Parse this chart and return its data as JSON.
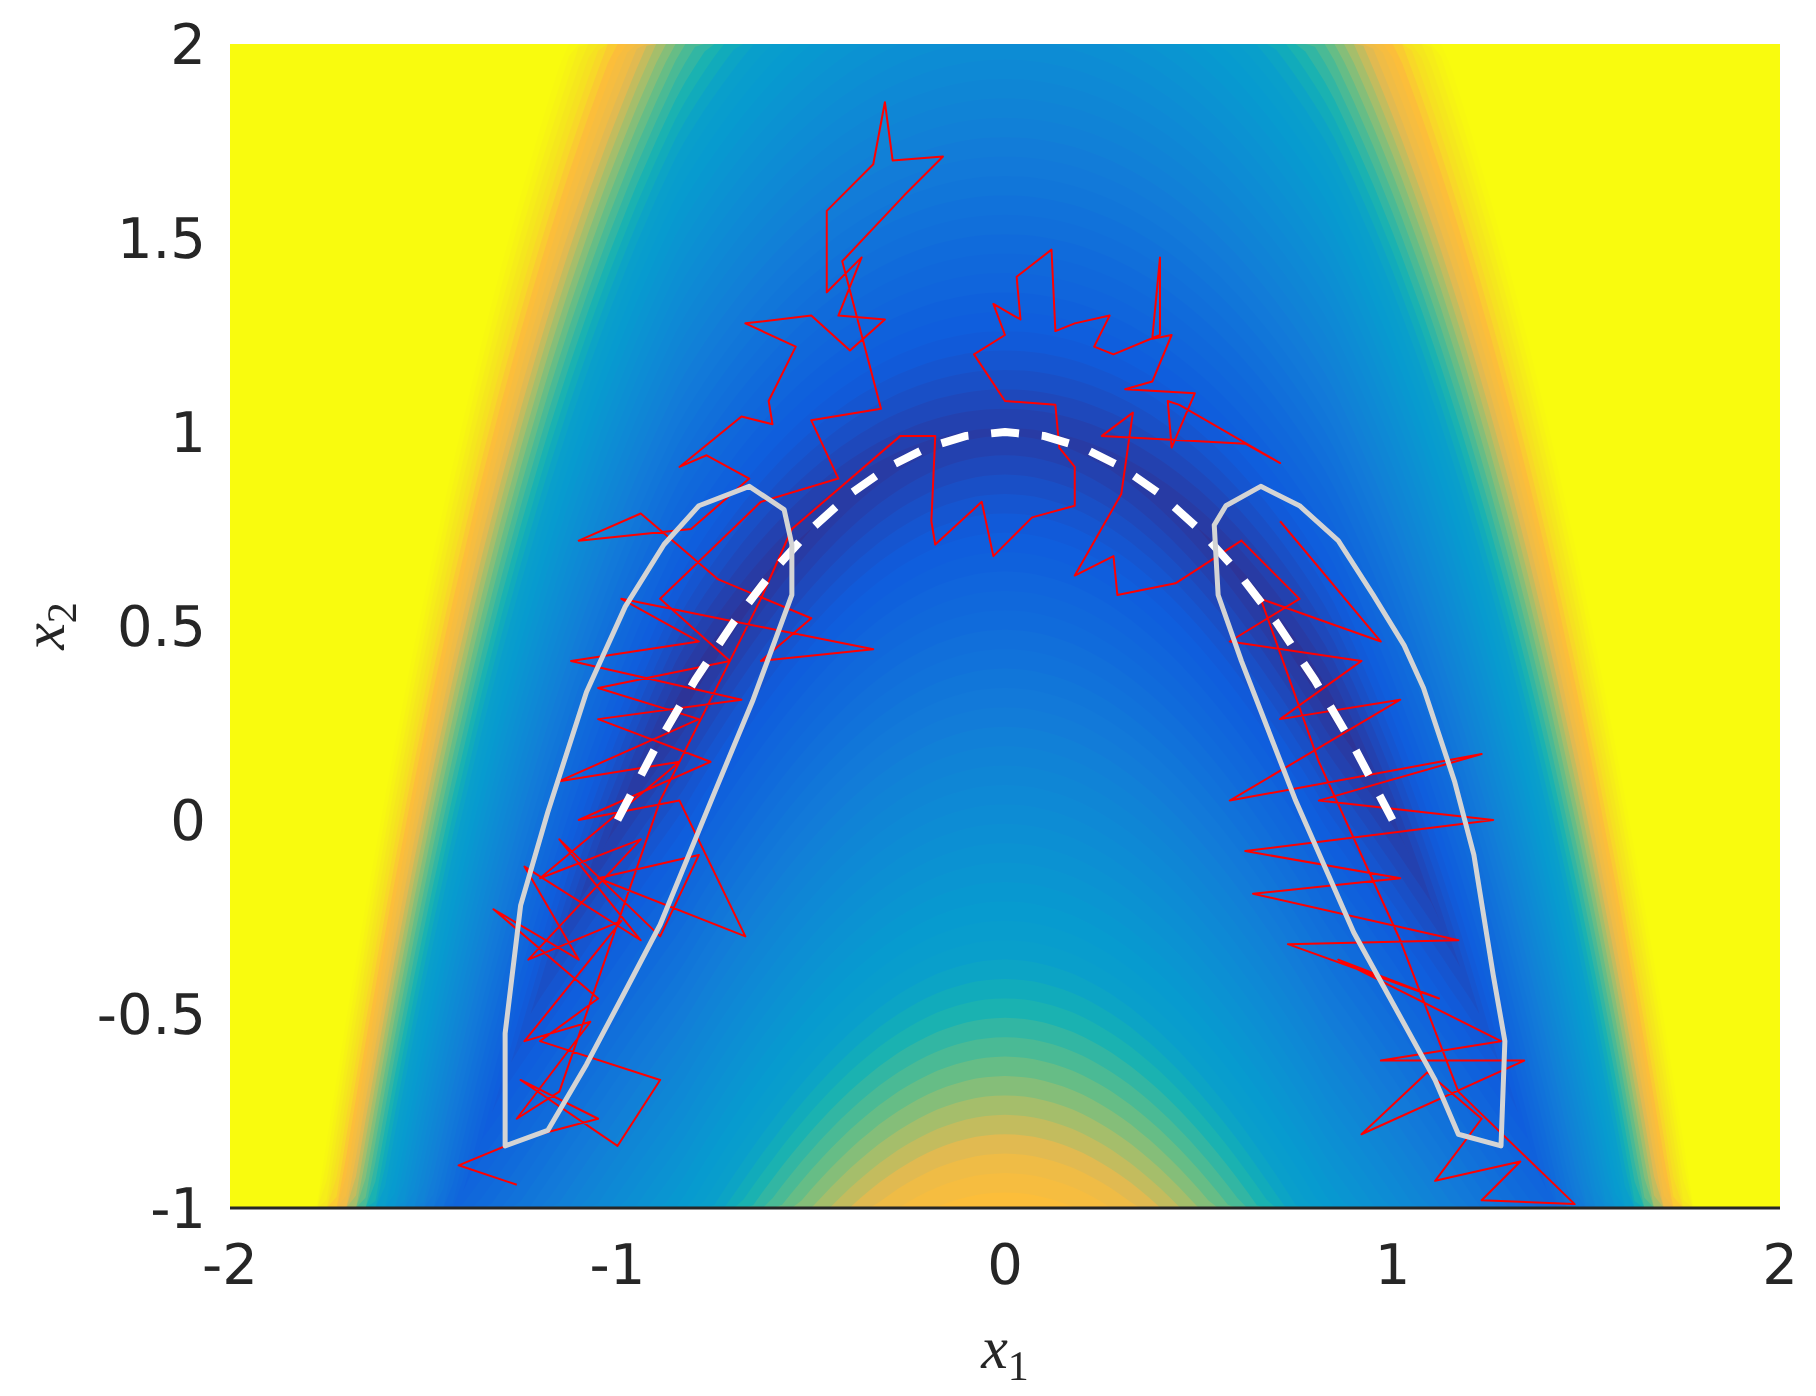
{
  "chart_data": {
    "type": "line",
    "xlabel": "x$_{1}$",
    "ylabel": "x$_{2}$",
    "xlim": [
      -2,
      2
    ],
    "ylim": [
      -1,
      2
    ],
    "xticks": [
      -2,
      -1,
      0,
      1,
      2
    ],
    "yticks": [
      -1,
      -0.5,
      0,
      0.5,
      1,
      1.5,
      2
    ],
    "series": [
      {
        "color": "#ff0000",
        "x": [
          -1.26,
          -1.41,
          -1.24,
          -1.05,
          -1.25,
          -1.0,
          -0.89,
          -1.2,
          -1.05,
          -1.32,
          -1.1,
          -1.24,
          -0.94,
          -1.15,
          -0.89,
          -0.79,
          -1.05,
          -0.67,
          -0.84,
          -1.1,
          -0.76,
          -1.05,
          -0.68,
          -1.12,
          -0.79,
          -0.99,
          -0.34,
          -0.63,
          -0.5,
          -0.74,
          -0.94,
          -1.1,
          -0.81,
          -0.66,
          -0.77,
          -0.84,
          -0.68,
          -0.6,
          -0.61,
          -0.54,
          -0.67,
          -0.5,
          -0.4,
          -0.31,
          -0.43,
          -0.37,
          -0.46,
          -0.46,
          -0.34,
          -0.31,
          -0.29,
          -0.16,
          -0.26,
          -0.42,
          -0.32,
          -0.5,
          -0.43,
          -0.63,
          -0.89,
          -0.71,
          -1.05,
          -0.79,
          -1.15,
          -0.84,
          -1.2,
          -0.94,
          -1.23,
          -0.99,
          -1.24,
          -1.07,
          -1.26,
          -1.15,
          -0.89,
          -0.63,
          -0.55,
          -0.27,
          -0.18,
          -0.19,
          -0.18,
          -0.06,
          -0.03,
          0.07,
          0.18,
          0.18,
          0.14,
          0.13,
          0.0,
          -0.08,
          0.0,
          -0.03,
          0.04,
          0.03,
          0.12,
          0.13,
          0.18,
          0.27,
          0.23,
          0.28,
          0.4,
          0.4,
          0.38,
          0.43,
          0.38,
          0.31,
          0.49,
          0.43,
          0.42,
          0.45,
          0.71,
          0.62,
          0.25,
          0.33,
          0.3,
          0.18,
          0.28,
          0.29,
          0.44,
          0.61,
          0.76,
          0.58,
          0.92,
          0.71,
          1.02,
          0.58,
          1.23,
          0.81,
          1.26,
          0.62,
          1.02,
          0.64,
          1.17,
          0.73,
          1.12,
          0.86,
          1.28,
          0.97,
          1.34,
          0.92,
          1.09,
          1.23,
          1.11,
          1.33,
          1.23,
          1.47,
          1.17,
          1.02,
          0.81,
          0.66,
          0.97,
          0.71
        ],
        "values": [
          -0.94,
          -0.89,
          -0.82,
          -0.77,
          -0.67,
          -0.84,
          -0.67,
          -0.57,
          -0.46,
          -0.23,
          -0.36,
          -0.12,
          -0.31,
          -0.05,
          -0.3,
          -0.09,
          -0.15,
          -0.3,
          0.05,
          0.0,
          0.15,
          0.26,
          0.31,
          0.41,
          0.46,
          0.57,
          0.44,
          0.41,
          0.52,
          0.62,
          0.79,
          0.72,
          0.75,
          0.88,
          0.94,
          0.91,
          1.04,
          1.02,
          1.08,
          1.22,
          1.28,
          1.3,
          1.21,
          1.29,
          1.3,
          1.45,
          1.36,
          1.57,
          1.69,
          1.85,
          1.7,
          1.71,
          1.61,
          1.44,
          1.06,
          1.03,
          0.88,
          0.82,
          0.57,
          0.41,
          0.34,
          0.26,
          0.1,
          0.15,
          -0.15,
          -0.05,
          -0.36,
          -0.26,
          -0.57,
          -0.52,
          -0.77,
          -0.7,
          0.05,
          0.57,
          0.75,
          0.99,
          0.99,
          0.77,
          0.71,
          0.82,
          0.68,
          0.78,
          0.81,
          0.91,
          0.96,
          1.07,
          1.08,
          1.2,
          1.25,
          1.33,
          1.29,
          1.4,
          1.47,
          1.26,
          1.28,
          1.3,
          1.22,
          1.2,
          1.25,
          1.45,
          1.24,
          1.25,
          1.13,
          1.11,
          1.1,
          0.96,
          1.08,
          1.07,
          0.92,
          0.97,
          0.99,
          1.05,
          0.84,
          0.63,
          0.68,
          0.58,
          0.61,
          0.72,
          0.57,
          0.46,
          0.41,
          0.26,
          0.31,
          0.05,
          0.17,
          0.05,
          0.0,
          -0.08,
          -0.15,
          -0.19,
          -0.31,
          -0.32,
          -0.46,
          -0.36,
          -0.57,
          -0.62,
          -0.62,
          -0.81,
          -0.65,
          -0.77,
          -0.93,
          -0.88,
          -0.98,
          -0.99,
          -0.7,
          -0.31,
          0.15,
          0.57,
          0.46,
          0.77
        ]
      },
      {
        "color": "#ffffff",
        "line_style": "dashed",
        "x": [
          -1,
          -0.9,
          -0.8,
          -0.7,
          -0.6,
          -0.5,
          -0.4,
          -0.3,
          -0.2,
          -0.1,
          0,
          0.1,
          0.2,
          0.3,
          0.4,
          0.5,
          0.6,
          0.7,
          0.8,
          0.9,
          1
        ],
        "values": [
          0,
          0.19,
          0.36,
          0.51,
          0.64,
          0.75,
          0.84,
          0.91,
          0.96,
          0.99,
          1,
          0.99,
          0.96,
          0.91,
          0.84,
          0.75,
          0.64,
          0.51,
          0.36,
          0.19,
          0
        ]
      },
      {
        "color": "#d4d4d4",
        "x": [
          -0.66,
          -0.57,
          -0.55,
          -0.55,
          -0.65,
          -0.75,
          -0.89,
          -0.99,
          -1.08,
          -1.18,
          -1.29,
          -1.29,
          -1.25,
          -1.18,
          -1.08,
          -0.98,
          -0.88,
          -0.79,
          -0.66,
          -0.57
        ],
        "values": [
          0.86,
          0.8,
          0.71,
          0.58,
          0.31,
          0.07,
          -0.27,
          -0.46,
          -0.63,
          -0.8,
          -0.84,
          -0.55,
          -0.22,
          0.02,
          0.33,
          0.55,
          0.71,
          0.81,
          0.86,
          0.8
        ]
      },
      {
        "color": "#d4d4d4",
        "x": [
          0.66,
          0.76,
          0.86,
          0.95,
          1.03,
          1.08,
          1.16,
          1.21,
          1.26,
          1.29,
          1.28,
          1.17,
          1.11,
          0.9,
          0.75,
          0.61,
          0.55,
          0.54,
          0.57,
          0.66,
          0.76
        ],
        "values": [
          0.86,
          0.81,
          0.72,
          0.58,
          0.45,
          0.34,
          0.1,
          -0.09,
          -0.4,
          -0.57,
          -0.84,
          -0.81,
          -0.67,
          -0.29,
          0.05,
          0.41,
          0.58,
          0.76,
          0.81,
          0.86,
          0.81
        ]
      }
    ]
  }
}
